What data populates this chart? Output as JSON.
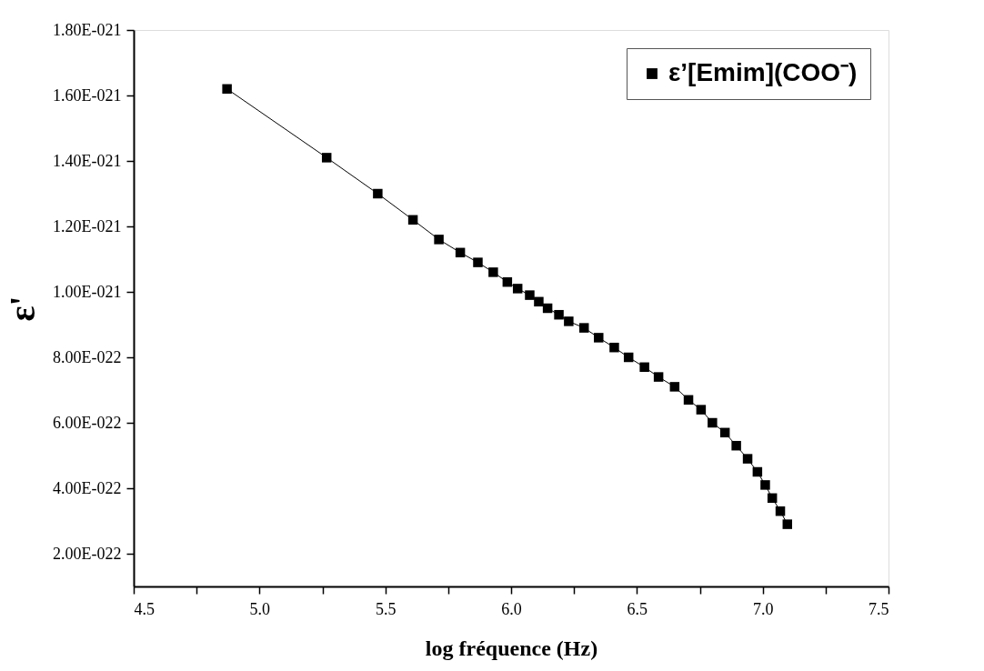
{
  "chart_data": {
    "type": "line",
    "xlabel": "log fréquence (Hz)",
    "ylabel": "ε'",
    "marker": "square",
    "line_style": "solid",
    "legend": "top right",
    "grid": false,
    "xlim": [
      4.5,
      7.5
    ],
    "xticks": [
      4.5,
      {
        "value": 4.75,
        "label": null
      },
      {
        "value": 5,
        "label": "5.0"
      },
      {
        "value": 5.25,
        "label": null
      },
      5.5,
      {
        "value": 5.75,
        "label": null
      },
      {
        "value": 6,
        "label": "6.0"
      },
      {
        "value": 6.25,
        "label": null
      },
      6.5,
      {
        "value": 6.75,
        "label": null
      },
      {
        "value": 7,
        "label": "7.0"
      },
      {
        "value": 7.25,
        "label": null
      },
      7.5
    ],
    "ylim": [
      1e-22,
      1.8e-21
    ],
    "yticks": [
      {
        "value": 2e-22,
        "label": "2.00E-022"
      },
      {
        "value": 4e-22,
        "label": "4.00E-022"
      },
      {
        "value": 6e-22,
        "label": "6.00E-022"
      },
      {
        "value": 8e-22,
        "label": "8.00E-022"
      },
      {
        "value": 1e-21,
        "label": "1.00E-021"
      },
      {
        "value": 1.2e-21,
        "label": "1.20E-021"
      },
      {
        "value": 1.4e-21,
        "label": "1.40E-021"
      },
      {
        "value": 1.6e-21,
        "label": "1.60E-021"
      },
      {
        "value": 1.8e-21,
        "label": "1.80E-021"
      }
    ],
    "series": [
      {
        "name": "ε’[Emim](COO⁻)",
        "color": "#000000",
        "x": [
          4.871,
          5.267,
          5.47,
          5.61,
          5.713,
          5.798,
          5.868,
          5.929,
          5.985,
          6.026,
          6.074,
          6.11,
          6.145,
          6.19,
          6.229,
          6.29,
          6.348,
          6.41,
          6.467,
          6.53,
          6.586,
          6.65,
          6.705,
          6.755,
          6.8,
          6.85,
          6.895,
          6.94,
          6.979,
          7.01,
          7.038,
          7.07,
          7.098
        ],
        "values": [
          1.62e-21,
          1.41e-21,
          1.3e-21,
          1.22e-21,
          1.16e-21,
          1.12e-21,
          1.09e-21,
          1.06e-21,
          1.03e-21,
          1.01e-21,
          9.9e-22,
          9.7e-22,
          9.5e-22,
          9.3e-22,
          9.1e-22,
          8.9e-22,
          8.6e-22,
          8.3e-22,
          8e-22,
          7.7e-22,
          7.4e-22,
          7.1e-22,
          6.7e-22,
          6.4e-22,
          6e-22,
          5.7e-22,
          5.3e-22,
          4.9e-22,
          4.5e-22,
          4.1e-22,
          3.7e-22,
          3.3e-22,
          2.9e-22
        ]
      }
    ]
  }
}
